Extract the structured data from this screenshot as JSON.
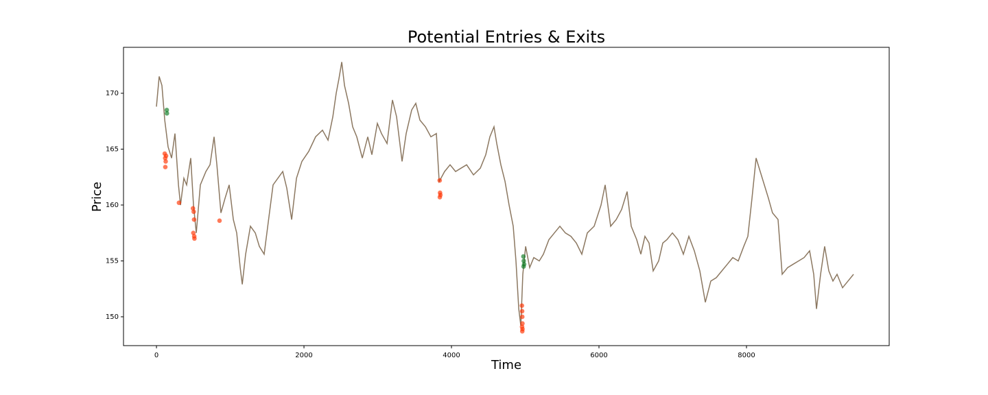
{
  "chart_data": {
    "type": "line",
    "title": "Potential Entries & Exits",
    "x_label": "Time",
    "y_label": "Price",
    "xlim": [
      -447,
      9935
    ],
    "ylim": [
      147.42,
      174.11
    ],
    "xticks": [
      0,
      2000,
      4000,
      6000,
      8000
    ],
    "yticks": [
      150,
      155,
      160,
      165,
      170
    ],
    "series": [
      {
        "type": "line",
        "color": "#8b7760",
        "x": [
          0,
          37,
          74,
          112,
          158,
          205,
          251,
          298,
          326,
          372,
          409,
          465,
          502,
          540,
          595,
          670,
          726,
          781,
          819,
          874,
          930,
          986,
          1042,
          1088,
          1135,
          1163,
          1209,
          1274,
          1340,
          1395,
          1460,
          1526,
          1581,
          1646,
          1712,
          1767,
          1833,
          1898,
          1972,
          2065,
          2158,
          2251,
          2326,
          2391,
          2437,
          2474,
          2512,
          2549,
          2605,
          2660,
          2716,
          2791,
          2865,
          2921,
          2995,
          3051,
          3126,
          3200,
          3256,
          3330,
          3386,
          3460,
          3516,
          3572,
          3647,
          3721,
          3795,
          3833,
          3907,
          3981,
          4056,
          4130,
          4205,
          4298,
          4391,
          4465,
          4521,
          4577,
          4614,
          4670,
          4726,
          4781,
          4837,
          4874,
          4912,
          4940,
          4967,
          5005,
          5060,
          5116,
          5191,
          5246,
          5321,
          5395,
          5470,
          5544,
          5619,
          5693,
          5767,
          5842,
          5935,
          6028,
          6084,
          6158,
          6233,
          6307,
          6381,
          6437,
          6512,
          6567,
          6623,
          6679,
          6735,
          6809,
          6865,
          6921,
          6995,
          7070,
          7144,
          7219,
          7293,
          7367,
          7442,
          7516,
          7591,
          7665,
          7740,
          7814,
          7888,
          7963,
          8019,
          8074,
          8130,
          8186,
          8242,
          8298,
          8353,
          8428,
          8484,
          8558,
          8633,
          8707,
          8781,
          8856,
          8912,
          8949,
          9005,
          9060,
          9116,
          9172,
          9228,
          9302,
          9377,
          9451
        ],
        "values": [
          168.8,
          171.5,
          170.7,
          167.6,
          165.2,
          164.2,
          166.4,
          161.8,
          160,
          162.4,
          161.8,
          164.2,
          160,
          157.5,
          161.8,
          163,
          163.6,
          166.1,
          163.6,
          159.3,
          160.6,
          161.8,
          158.7,
          157.5,
          154.4,
          152.9,
          155.6,
          158.1,
          157.5,
          156.3,
          155.6,
          159,
          161.8,
          162.4,
          163,
          161.5,
          158.7,
          162.4,
          163.9,
          164.8,
          166.1,
          166.7,
          165.8,
          167.9,
          170,
          171.3,
          172.8,
          170.7,
          169.1,
          167,
          166.1,
          164.2,
          166.1,
          164.5,
          167.3,
          166.4,
          165.5,
          169.4,
          167.9,
          163.9,
          166.4,
          168.5,
          169.1,
          167.6,
          167,
          166.1,
          166.4,
          162.1,
          163,
          163.6,
          163,
          163.3,
          163.6,
          162.7,
          163.3,
          164.5,
          166.1,
          167,
          165.5,
          163.6,
          162.1,
          160,
          158.1,
          155,
          150.7,
          149.2,
          153.8,
          156.3,
          154.4,
          155.3,
          155,
          155.6,
          156.9,
          157.5,
          158.1,
          157.5,
          157.2,
          156.6,
          155.6,
          157.5,
          158.1,
          160,
          161.8,
          158.1,
          158.7,
          159.6,
          161.2,
          158.1,
          156.9,
          155.6,
          157.2,
          156.6,
          154.1,
          155,
          156.6,
          156.9,
          157.5,
          156.9,
          155.6,
          157.2,
          155.9,
          154.1,
          151.3,
          153.2,
          153.5,
          154.1,
          154.7,
          155.3,
          155,
          156.3,
          157.2,
          160.6,
          164.2,
          163,
          161.8,
          160.6,
          159.3,
          158.7,
          153.8,
          154.4,
          154.7,
          155,
          155.3,
          155.9,
          153.8,
          150.7,
          153.8,
          156.3,
          154.1,
          153.2,
          153.8,
          152.6,
          153.2,
          153.8
        ]
      },
      {
        "type": "scatter",
        "color": "#ff3300",
        "x": [
          112,
          118,
          125,
          120,
          130,
          305,
          495,
          505,
          510,
          500,
          512,
          515,
          855,
          3840,
          3845,
          3850,
          3842,
          4955,
          4958,
          4960,
          4962,
          4957,
          4963,
          4960
        ],
        "values": [
          164.6,
          164.2,
          163.9,
          163.4,
          164.4,
          160.2,
          159.7,
          159.4,
          158.7,
          157.5,
          157.2,
          157,
          158.6,
          162.2,
          161.1,
          160.9,
          160.7,
          151,
          150.5,
          150,
          149.4,
          149.1,
          148.9,
          148.7
        ]
      },
      {
        "type": "scatter",
        "color": "#0a7a20",
        "x": [
          140,
          142,
          4975,
          4980,
          4985,
          4978
        ],
        "values": [
          168.5,
          168.2,
          155.4,
          155,
          154.7,
          154.5
        ]
      }
    ]
  }
}
